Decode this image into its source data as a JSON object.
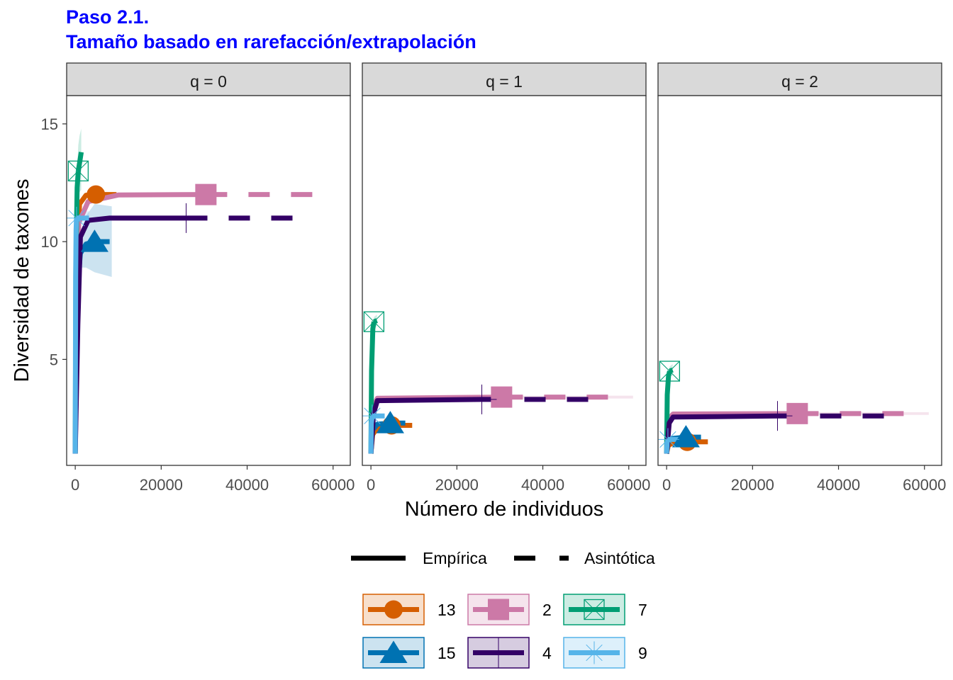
{
  "title": {
    "line1": "Paso 2.1.",
    "line2": "Tamaño basado en rarefacción/extrapolación"
  },
  "colors": {
    "13": "#D55E00",
    "2": "#CC79A7",
    "7": "#009E73",
    "15": "#0072B2",
    "4": "#330066",
    "9": "#56B4E9"
  },
  "chart_data": {
    "type": "line",
    "xlabel": "Número de individuos",
    "ylabel": "Diversidad de taxones",
    "xlim": [
      -2000,
      64000
    ],
    "ylim": [
      0.5,
      16.2
    ],
    "x_ticks": [
      0,
      20000,
      40000,
      60000
    ],
    "y_ticks": [
      5,
      10,
      15
    ],
    "x_tick_labels": [
      "0",
      "20000",
      "40000",
      "60000"
    ],
    "y_tick_labels": [
      "5",
      "10",
      "15"
    ],
    "grid": false,
    "legend_position": "bottom",
    "line_type_legend": [
      "Empírica",
      "Asintótica"
    ],
    "facets": [
      {
        "label": "q = 0",
        "series": [
          {
            "name": "13",
            "shape": "circle",
            "observed": [
              4800,
              12
            ],
            "empirical": [
              [
                1,
                1
              ],
              [
                300,
                9
              ],
              [
                1000,
                11.6
              ],
              [
                2500,
                11.97
              ],
              [
                4800,
                12
              ]
            ],
            "asymptotic": [
              [
                4800,
                12
              ],
              [
                9600,
                12
              ]
            ],
            "ci": []
          },
          {
            "name": "2",
            "shape": "square",
            "observed": [
              30400,
              12
            ],
            "empirical": [
              [
                1,
                1
              ],
              [
                800,
                10.8
              ],
              [
                3000,
                11.7
              ],
              [
                10000,
                11.98
              ],
              [
                30400,
                12
              ]
            ],
            "asymptotic": [
              [
                30400,
                12
              ],
              [
                57000,
                12
              ]
            ],
            "ci": []
          },
          {
            "name": "7",
            "shape": "boxx",
            "observed": [
              700,
              13
            ],
            "empirical": [
              [
                1,
                1
              ],
              [
                150,
                9
              ],
              [
                450,
                12.3
              ],
              [
                700,
                13
              ]
            ],
            "asymptotic": [
              [
                700,
                13
              ],
              [
                1400,
                13.8
              ]
            ],
            "ci": [
              [
                1,
                1.3,
                0.9
              ],
              [
                150,
                9.6,
                8.4
              ],
              [
                450,
                13.1,
                11.6
              ],
              [
                700,
                14.1,
                11.9
              ],
              [
                1000,
                14.5,
                12.1
              ],
              [
                1400,
                14.8,
                12.2
              ]
            ]
          },
          {
            "name": "15",
            "shape": "triangle",
            "observed": [
              4500,
              10
            ],
            "empirical": [
              [
                1,
                1
              ],
              [
                300,
                7.5
              ],
              [
                1200,
                9.5
              ],
              [
                2500,
                9.9
              ],
              [
                4500,
                10
              ]
            ],
            "asymptotic": [
              [
                4500,
                10
              ],
              [
                8000,
                10
              ]
            ],
            "ci": [
              [
                1200,
                9.3,
                8.9
              ],
              [
                2500,
                11.1,
                8.9
              ],
              [
                4500,
                11.6,
                8.7
              ],
              [
                8500,
                11.5,
                8.5
              ]
            ]
          },
          {
            "name": "4",
            "shape": "plus",
            "observed": [
              25800,
              11
            ],
            "empirical": [
              [
                1,
                1
              ],
              [
                600,
                6.5
              ],
              [
                1200,
                10.2
              ],
              [
                3000,
                10.9
              ],
              [
                8000,
                11
              ],
              [
                25800,
                11
              ]
            ],
            "asymptotic": [
              [
                25800,
                11
              ],
              [
                51000,
                11
              ]
            ],
            "ci": []
          },
          {
            "name": "9",
            "shape": "asterisk",
            "observed": [
              300,
              11
            ],
            "empirical": [
              [
                1,
                1
              ],
              [
                100,
                8.5
              ],
              [
                200,
                10.5
              ],
              [
                300,
                11
              ]
            ],
            "asymptotic": [
              [
                300,
                11
              ],
              [
                3200,
                11
              ]
            ],
            "ci": [
              [
                300,
                11.2,
                10.8
              ],
              [
                3200,
                11.3,
                10.7
              ]
            ]
          }
        ]
      },
      {
        "label": "q = 1",
        "series": [
          {
            "name": "13",
            "shape": "circle",
            "observed": [
              4800,
              2.2
            ],
            "empirical": [
              [
                1,
                1
              ],
              [
                400,
                1.8
              ],
              [
                1500,
                2.1
              ],
              [
                4800,
                2.2
              ]
            ],
            "asymptotic": [
              [
                4800,
                2.2
              ],
              [
                9600,
                2.2
              ]
            ],
            "ci": []
          },
          {
            "name": "2",
            "shape": "square",
            "observed": [
              30400,
              3.4
            ],
            "empirical": [
              [
                1,
                1
              ],
              [
                600,
                3.0
              ],
              [
                1500,
                3.35
              ],
              [
                30400,
                3.4
              ]
            ],
            "asymptotic": [
              [
                30400,
                3.4
              ],
              [
                57000,
                3.4
              ]
            ],
            "ci": [
              [
                30400,
                3.46,
                3.34
              ],
              [
                61000,
                3.46,
                3.34
              ]
            ]
          },
          {
            "name": "7",
            "shape": "boxx",
            "observed": [
              700,
              6.6
            ],
            "empirical": [
              [
                1,
                1
              ],
              [
                150,
                4.5
              ],
              [
                450,
                6.3
              ],
              [
                700,
                6.6
              ]
            ],
            "asymptotic": [
              [
                700,
                6.6
              ],
              [
                1400,
                6.65
              ]
            ],
            "ci": [
              [
                450,
                6.5,
                6.2
              ],
              [
                700,
                6.8,
                6.4
              ],
              [
                1400,
                6.9,
                6.4
              ]
            ]
          },
          {
            "name": "15",
            "shape": "triangle",
            "observed": [
              4500,
              2.3
            ],
            "empirical": [
              [
                1,
                1
              ],
              [
                400,
                2.0
              ],
              [
                1500,
                2.25
              ],
              [
                4500,
                2.3
              ]
            ],
            "asymptotic": [
              [
                4500,
                2.3
              ],
              [
                8000,
                2.3
              ]
            ],
            "ci": []
          },
          {
            "name": "4",
            "shape": "plus",
            "observed": [
              25800,
              3.3
            ],
            "empirical": [
              [
                1,
                1
              ],
              [
                600,
                2.7
              ],
              [
                1500,
                3.25
              ],
              [
                25800,
                3.3
              ]
            ],
            "asymptotic": [
              [
                25800,
                3.3
              ],
              [
                51000,
                3.3
              ]
            ],
            "ci": []
          },
          {
            "name": "9",
            "shape": "asterisk",
            "observed": [
              300,
              2.6
            ],
            "empirical": [
              [
                1,
                1
              ],
              [
                100,
                2.3
              ],
              [
                300,
                2.6
              ]
            ],
            "asymptotic": [
              [
                300,
                2.6
              ],
              [
                3200,
                2.6
              ]
            ],
            "ci": []
          }
        ]
      },
      {
        "label": "q = 2",
        "series": [
          {
            "name": "13",
            "shape": "circle",
            "observed": [
              4800,
              1.5
            ],
            "empirical": [
              [
                1,
                1
              ],
              [
                400,
                1.35
              ],
              [
                1500,
                1.45
              ],
              [
                4800,
                1.5
              ]
            ],
            "asymptotic": [
              [
                4800,
                1.5
              ],
              [
                9600,
                1.5
              ]
            ],
            "ci": []
          },
          {
            "name": "2",
            "shape": "square",
            "observed": [
              30400,
              2.7
            ],
            "empirical": [
              [
                1,
                1
              ],
              [
                600,
                2.5
              ],
              [
                1500,
                2.68
              ],
              [
                30400,
                2.7
              ]
            ],
            "asymptotic": [
              [
                30400,
                2.7
              ],
              [
                57000,
                2.7
              ]
            ],
            "ci": [
              [
                30400,
                2.76,
                2.64
              ],
              [
                61000,
                2.76,
                2.64
              ]
            ]
          },
          {
            "name": "7",
            "shape": "boxx",
            "observed": [
              700,
              4.5
            ],
            "empirical": [
              [
                1,
                1
              ],
              [
                150,
                3.5
              ],
              [
                450,
                4.3
              ],
              [
                700,
                4.5
              ]
            ],
            "asymptotic": [
              [
                700,
                4.5
              ],
              [
                1400,
                4.55
              ]
            ],
            "ci": [
              [
                450,
                4.4,
                4.2
              ],
              [
                700,
                4.7,
                4.3
              ],
              [
                1400,
                4.8,
                4.3
              ]
            ]
          },
          {
            "name": "15",
            "shape": "triangle",
            "observed": [
              4500,
              1.7
            ],
            "empirical": [
              [
                1,
                1
              ],
              [
                400,
                1.55
              ],
              [
                1500,
                1.65
              ],
              [
                4500,
                1.7
              ]
            ],
            "asymptotic": [
              [
                4500,
                1.7
              ],
              [
                8000,
                1.7
              ]
            ],
            "ci": []
          },
          {
            "name": "4",
            "shape": "plus",
            "observed": [
              25800,
              2.6
            ],
            "empirical": [
              [
                1,
                1
              ],
              [
                600,
                2.3
              ],
              [
                1500,
                2.55
              ],
              [
                25800,
                2.6
              ]
            ],
            "asymptotic": [
              [
                25800,
                2.6
              ],
              [
                51000,
                2.6
              ]
            ],
            "ci": []
          },
          {
            "name": "9",
            "shape": "asterisk",
            "observed": [
              300,
              1.6
            ],
            "empirical": [
              [
                1,
                1
              ],
              [
                100,
                1.45
              ],
              [
                300,
                1.6
              ]
            ],
            "asymptotic": [
              [
                300,
                1.6
              ],
              [
                3200,
                1.6
              ]
            ],
            "ci": []
          }
        ]
      }
    ]
  }
}
